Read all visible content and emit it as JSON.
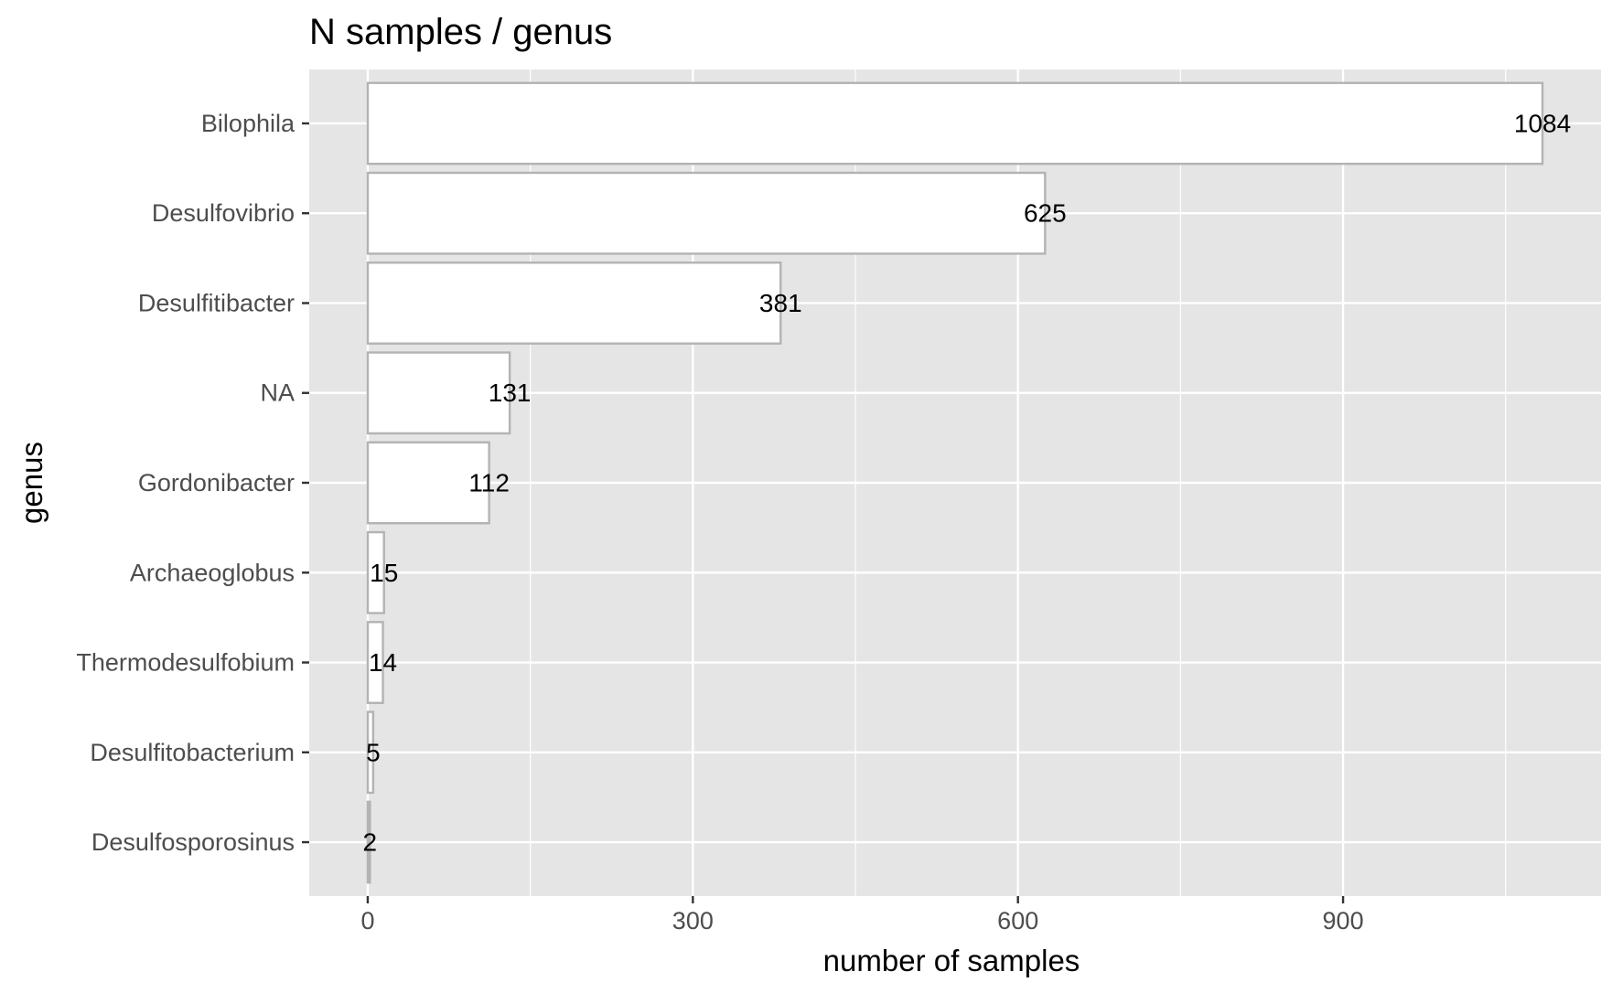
{
  "chart_data": {
    "type": "bar",
    "orientation": "horizontal",
    "title": "N samples / genus",
    "xlabel": "number of samples",
    "ylabel": "genus",
    "categories": [
      "Bilophila",
      "Desulfovibrio",
      "Desulfitibacter",
      "NA",
      "Gordonibacter",
      "Archaeoglobus",
      "Thermodesulfobium",
      "Desulfitobacterium",
      "Desulfosporosinus"
    ],
    "values": [
      1084,
      625,
      381,
      131,
      112,
      15,
      14,
      5,
      2
    ],
    "xticks": [
      0,
      300,
      600,
      900
    ],
    "xlim": [
      -54,
      1138
    ],
    "data_labels": true,
    "grid": true,
    "legend": "none",
    "colors": {
      "panel_background": "#e5e5e5",
      "grid_major": "#ffffff",
      "bar_fill": "#ffffff",
      "bar_outline": "#b3b3b3",
      "axis_text": "#4d4d4d",
      "label_text": "#000000"
    }
  }
}
